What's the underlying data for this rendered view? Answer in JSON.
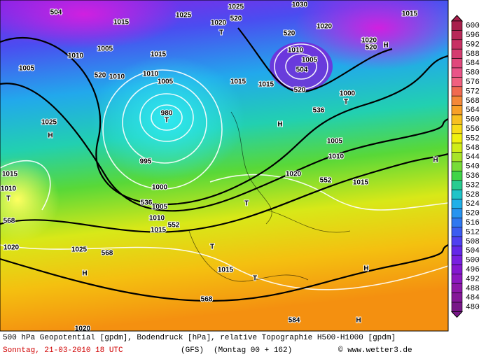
{
  "colorbar": {
    "labels": [
      600,
      596,
      592,
      588,
      584,
      580,
      576,
      572,
      568,
      564,
      560,
      556,
      552,
      548,
      544,
      540,
      536,
      532,
      528,
      524,
      520,
      516,
      512,
      508,
      504,
      500,
      496,
      492,
      488,
      484,
      480
    ]
  },
  "map_labels": [
    "504",
    "1025",
    "1025",
    "520",
    "1030",
    "1015",
    "1015",
    "1020",
    "T",
    "520",
    "1020",
    "1020",
    "520",
    "H",
    "1010",
    "1005",
    "1015",
    "1010",
    "1005",
    "504",
    "1005",
    "520",
    "1010",
    "1010",
    "1005",
    "1015",
    "1015",
    "520",
    "1000",
    "T",
    "536",
    "980",
    "T",
    "1025",
    "H",
    "H",
    "1005",
    "1010",
    "995",
    "1020",
    "552",
    "1015",
    "H",
    "1015",
    "1010",
    "T",
    "1000",
    "536",
    "1005",
    "T",
    "1010",
    "552",
    "1015",
    "568",
    "1020",
    "1025",
    "568",
    "T",
    "H",
    "1015",
    "T",
    "H",
    "568",
    "584",
    "H",
    "1020"
  ],
  "footer": {
    "line1": "500 hPa Geopotential [gpdm], Bodendruck [hPa], relative Topographie H500-H1000 [gpdm]",
    "date": "Sonntag, 21-03-2010  18 UTC",
    "model": "(GFS)",
    "run": "(Montag 00 + 162)",
    "credit": "© www.wetter3.de"
  }
}
